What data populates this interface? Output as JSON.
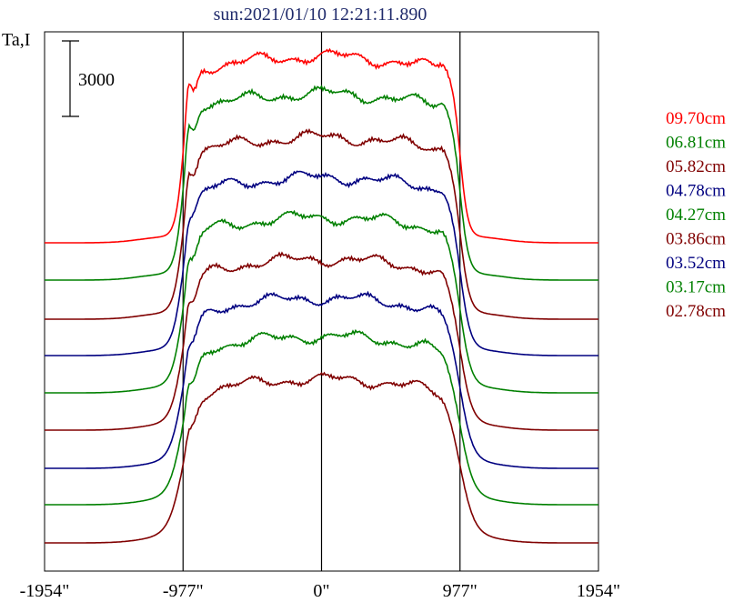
{
  "chart_data": {
    "type": "line",
    "title": "sun:2021/01/10 12:21:11.890",
    "ylabel": "Ta,I",
    "scale_bar_label": "3000",
    "x_ticks": [
      {
        "value": -1954,
        "label": "-1954\""
      },
      {
        "value": -977,
        "label": "-977\""
      },
      {
        "value": 0,
        "label": "0\""
      },
      {
        "value": 977,
        "label": "977\""
      },
      {
        "value": 1954,
        "label": "1954\""
      }
    ],
    "vertical_lines": [
      -977,
      0,
      977
    ],
    "xlim": [
      -1954,
      1954
    ],
    "grid": false,
    "legend_position": "right",
    "series": [
      {
        "name": "09.70cm",
        "color": "#ff0000",
        "baseline": 267,
        "height": 205,
        "limb_peak": 22,
        "wave_phase": 0.3
      },
      {
        "name": "06.81cm",
        "color": "#008000",
        "baseline": 308,
        "height": 205,
        "limb_peak": 20,
        "wave_phase": 1.1
      },
      {
        "name": "05.82cm",
        "color": "#800000",
        "baseline": 351,
        "height": 200,
        "limb_peak": 18,
        "wave_phase": 2.0
      },
      {
        "name": "04.78cm",
        "color": "#000080",
        "baseline": 391,
        "height": 196,
        "limb_peak": 10,
        "wave_phase": 2.7
      },
      {
        "name": "04.27cm",
        "color": "#008000",
        "baseline": 432,
        "height": 193,
        "limb_peak": 14,
        "wave_phase": 3.5
      },
      {
        "name": "03.86cm",
        "color": "#800000",
        "baseline": 473,
        "height": 188,
        "limb_peak": 14,
        "wave_phase": 4.2
      },
      {
        "name": "03.52cm",
        "color": "#000080",
        "baseline": 515,
        "height": 187,
        "limb_peak": 10,
        "wave_phase": 5.0
      },
      {
        "name": "03.17cm",
        "color": "#008000",
        "baseline": 555,
        "height": 185,
        "limb_peak": 12,
        "wave_phase": 5.7
      },
      {
        "name": "02.78cm",
        "color": "#800000",
        "baseline": 597,
        "height": 180,
        "limb_peak": 8,
        "wave_phase": 0.8
      }
    ]
  }
}
